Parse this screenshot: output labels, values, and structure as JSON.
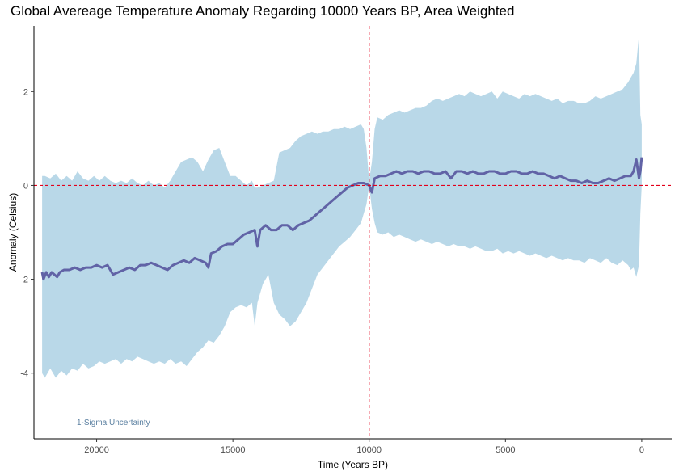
{
  "chart_data": {
    "type": "line",
    "title": "Global Avereage Temperature Anomaly Regarding 10000 Years BP, Area Weighted",
    "xlabel": "Time (Years BP)",
    "ylabel": "Anomaly (Celsius)",
    "xlim": [
      22300,
      -1100
    ],
    "ylim": [
      -5.4,
      3.4
    ],
    "x_reversed": true,
    "xticks": [
      20000,
      15000,
      10000,
      5000,
      0
    ],
    "xtick_labels": [
      "20000",
      "15000",
      "10000",
      "5000",
      "0"
    ],
    "yticks": [
      2,
      0,
      -2,
      -4
    ],
    "ytick_labels": [
      "2",
      "0",
      "-2",
      "-4"
    ],
    "grid": false,
    "colors": {
      "band": "#b9d8e8",
      "line": "#6163a6",
      "reference": "#e3001b",
      "annotation": "#5a7fa0"
    },
    "reference_lines": {
      "x": 10000,
      "y": 0
    },
    "annotation": "1-Sigma Uncertainty",
    "series": [
      {
        "band": "1-sigma",
        "x": [
          22000,
          21900,
          21700,
          21500,
          21300,
          21100,
          20900,
          20700,
          20500,
          20300,
          20100,
          19900,
          19700,
          19500,
          19300,
          19100,
          18900,
          18700,
          18500,
          18300,
          18100,
          17900,
          17700,
          17500,
          17300,
          17100,
          16900,
          16700,
          16500,
          16300,
          16100,
          15900,
          15700,
          15500,
          15300,
          15100,
          14900,
          14700,
          14500,
          14300,
          14200,
          14100,
          13900,
          13700,
          13500,
          13300,
          13100,
          12900,
          12700,
          12500,
          12300,
          12100,
          11900,
          11700,
          11500,
          11300,
          11100,
          10900,
          10700,
          10500,
          10300,
          10200,
          10100,
          10000,
          9900,
          9800,
          9700,
          9500,
          9300,
          9100,
          8900,
          8700,
          8500,
          8300,
          8100,
          7900,
          7700,
          7500,
          7300,
          7100,
          6900,
          6700,
          6500,
          6300,
          6100,
          5900,
          5700,
          5500,
          5300,
          5100,
          4900,
          4700,
          4500,
          4300,
          4100,
          3900,
          3700,
          3500,
          3300,
          3100,
          2900,
          2700,
          2500,
          2300,
          2100,
          1900,
          1700,
          1500,
          1300,
          1100,
          900,
          700,
          500,
          400,
          300,
          200,
          100,
          50,
          0
        ],
        "upper": [
          0.2,
          0.2,
          0.15,
          0.25,
          0.1,
          0.2,
          0.1,
          0.3,
          0.15,
          0.1,
          0.2,
          0.1,
          0.2,
          0.1,
          0.05,
          0.1,
          0.05,
          0.15,
          0.05,
          0.0,
          0.1,
          0.0,
          0.05,
          -0.05,
          0.1,
          0.3,
          0.5,
          0.55,
          0.6,
          0.5,
          0.3,
          0.55,
          0.75,
          0.8,
          0.5,
          0.2,
          0.2,
          0.1,
          0.0,
          0.1,
          -0.05,
          -0.05,
          0.0,
          0.05,
          0.1,
          0.7,
          0.75,
          0.8,
          0.95,
          1.05,
          1.1,
          1.15,
          1.1,
          1.15,
          1.15,
          1.2,
          1.2,
          1.25,
          1.2,
          1.25,
          1.3,
          1.2,
          0.8,
          0.1,
          0.5,
          1.2,
          1.45,
          1.4,
          1.5,
          1.55,
          1.6,
          1.55,
          1.6,
          1.65,
          1.65,
          1.7,
          1.8,
          1.85,
          1.8,
          1.85,
          1.9,
          1.95,
          1.9,
          2.0,
          1.95,
          1.9,
          1.95,
          2.0,
          1.85,
          2.0,
          1.95,
          1.9,
          1.85,
          1.95,
          1.9,
          1.95,
          1.9,
          1.85,
          1.8,
          1.85,
          1.75,
          1.8,
          1.8,
          1.75,
          1.75,
          1.8,
          1.9,
          1.85,
          1.9,
          1.95,
          2.0,
          2.05,
          2.2,
          2.3,
          2.4,
          2.6,
          3.2,
          1.5,
          1.3
        ],
        "lower": [
          -4.0,
          -4.1,
          -3.9,
          -4.1,
          -3.95,
          -4.05,
          -3.9,
          -3.95,
          -3.8,
          -3.9,
          -3.85,
          -3.75,
          -3.8,
          -3.75,
          -3.7,
          -3.8,
          -3.7,
          -3.75,
          -3.65,
          -3.7,
          -3.75,
          -3.8,
          -3.75,
          -3.8,
          -3.7,
          -3.8,
          -3.75,
          -3.85,
          -3.7,
          -3.55,
          -3.45,
          -3.3,
          -3.35,
          -3.2,
          -3.0,
          -2.7,
          -2.6,
          -2.55,
          -2.6,
          -2.5,
          -3.0,
          -2.5,
          -2.1,
          -1.9,
          -2.5,
          -2.75,
          -2.85,
          -3.0,
          -2.9,
          -2.7,
          -2.5,
          -2.2,
          -1.9,
          -1.75,
          -1.6,
          -1.45,
          -1.3,
          -1.2,
          -1.1,
          -0.95,
          -0.8,
          -0.6,
          -0.4,
          0.0,
          -0.5,
          -0.8,
          -1.0,
          -1.05,
          -1.0,
          -1.1,
          -1.05,
          -1.1,
          -1.15,
          -1.2,
          -1.15,
          -1.2,
          -1.25,
          -1.2,
          -1.25,
          -1.3,
          -1.25,
          -1.3,
          -1.3,
          -1.35,
          -1.3,
          -1.35,
          -1.4,
          -1.4,
          -1.35,
          -1.45,
          -1.4,
          -1.45,
          -1.4,
          -1.45,
          -1.5,
          -1.45,
          -1.5,
          -1.55,
          -1.5,
          -1.55,
          -1.6,
          -1.55,
          -1.6,
          -1.6,
          -1.65,
          -1.55,
          -1.6,
          -1.65,
          -1.55,
          -1.65,
          -1.7,
          -1.6,
          -1.7,
          -1.8,
          -1.75,
          -1.95,
          -1.7,
          -0.6,
          0.0
        ]
      },
      {
        "line": "mean anomaly",
        "x": [
          22000,
          21950,
          21850,
          21750,
          21650,
          21550,
          21450,
          21350,
          21200,
          21000,
          20800,
          20600,
          20400,
          20200,
          20000,
          19800,
          19600,
          19500,
          19400,
          19200,
          19000,
          18800,
          18600,
          18400,
          18200,
          18000,
          17800,
          17600,
          17400,
          17200,
          17000,
          16800,
          16600,
          16400,
          16200,
          16000,
          15900,
          15800,
          15600,
          15400,
          15200,
          15000,
          14800,
          14600,
          14400,
          14200,
          14100,
          14000,
          13900,
          13800,
          13600,
          13400,
          13200,
          13000,
          12800,
          12600,
          12400,
          12200,
          12000,
          11800,
          11600,
          11400,
          11200,
          11000,
          10800,
          10600,
          10400,
          10200,
          10000,
          9900,
          9800,
          9600,
          9400,
          9200,
          9000,
          8800,
          8600,
          8400,
          8200,
          8000,
          7800,
          7600,
          7400,
          7200,
          7000,
          6800,
          6600,
          6400,
          6200,
          6000,
          5800,
          5600,
          5400,
          5200,
          5000,
          4800,
          4600,
          4400,
          4200,
          4000,
          3800,
          3600,
          3400,
          3200,
          3000,
          2800,
          2600,
          2400,
          2200,
          2000,
          1800,
          1600,
          1400,
          1200,
          1000,
          800,
          600,
          400,
          300,
          200,
          150,
          100,
          50,
          0
        ],
        "values": [
          -1.85,
          -2.0,
          -1.85,
          -1.95,
          -1.85,
          -1.9,
          -1.95,
          -1.85,
          -1.8,
          -1.8,
          -1.75,
          -1.8,
          -1.75,
          -1.75,
          -1.7,
          -1.75,
          -1.7,
          -1.8,
          -1.9,
          -1.85,
          -1.8,
          -1.75,
          -1.8,
          -1.7,
          -1.7,
          -1.65,
          -1.7,
          -1.75,
          -1.8,
          -1.7,
          -1.65,
          -1.6,
          -1.65,
          -1.55,
          -1.6,
          -1.65,
          -1.75,
          -1.45,
          -1.4,
          -1.3,
          -1.25,
          -1.25,
          -1.15,
          -1.05,
          -1.0,
          -0.95,
          -1.3,
          -0.95,
          -0.9,
          -0.85,
          -0.95,
          -0.95,
          -0.85,
          -0.85,
          -0.95,
          -0.85,
          -0.8,
          -0.75,
          -0.65,
          -0.55,
          -0.45,
          -0.35,
          -0.25,
          -0.15,
          -0.05,
          0.0,
          0.05,
          0.05,
          0.0,
          -0.15,
          0.15,
          0.2,
          0.2,
          0.25,
          0.3,
          0.25,
          0.3,
          0.3,
          0.25,
          0.3,
          0.3,
          0.25,
          0.25,
          0.3,
          0.15,
          0.3,
          0.3,
          0.25,
          0.3,
          0.25,
          0.25,
          0.3,
          0.3,
          0.25,
          0.25,
          0.3,
          0.3,
          0.25,
          0.25,
          0.3,
          0.25,
          0.25,
          0.2,
          0.15,
          0.2,
          0.15,
          0.1,
          0.1,
          0.05,
          0.1,
          0.05,
          0.05,
          0.1,
          0.15,
          0.1,
          0.15,
          0.2,
          0.2,
          0.3,
          0.55,
          0.35,
          0.15,
          0.3,
          0.6
        ]
      }
    ]
  }
}
